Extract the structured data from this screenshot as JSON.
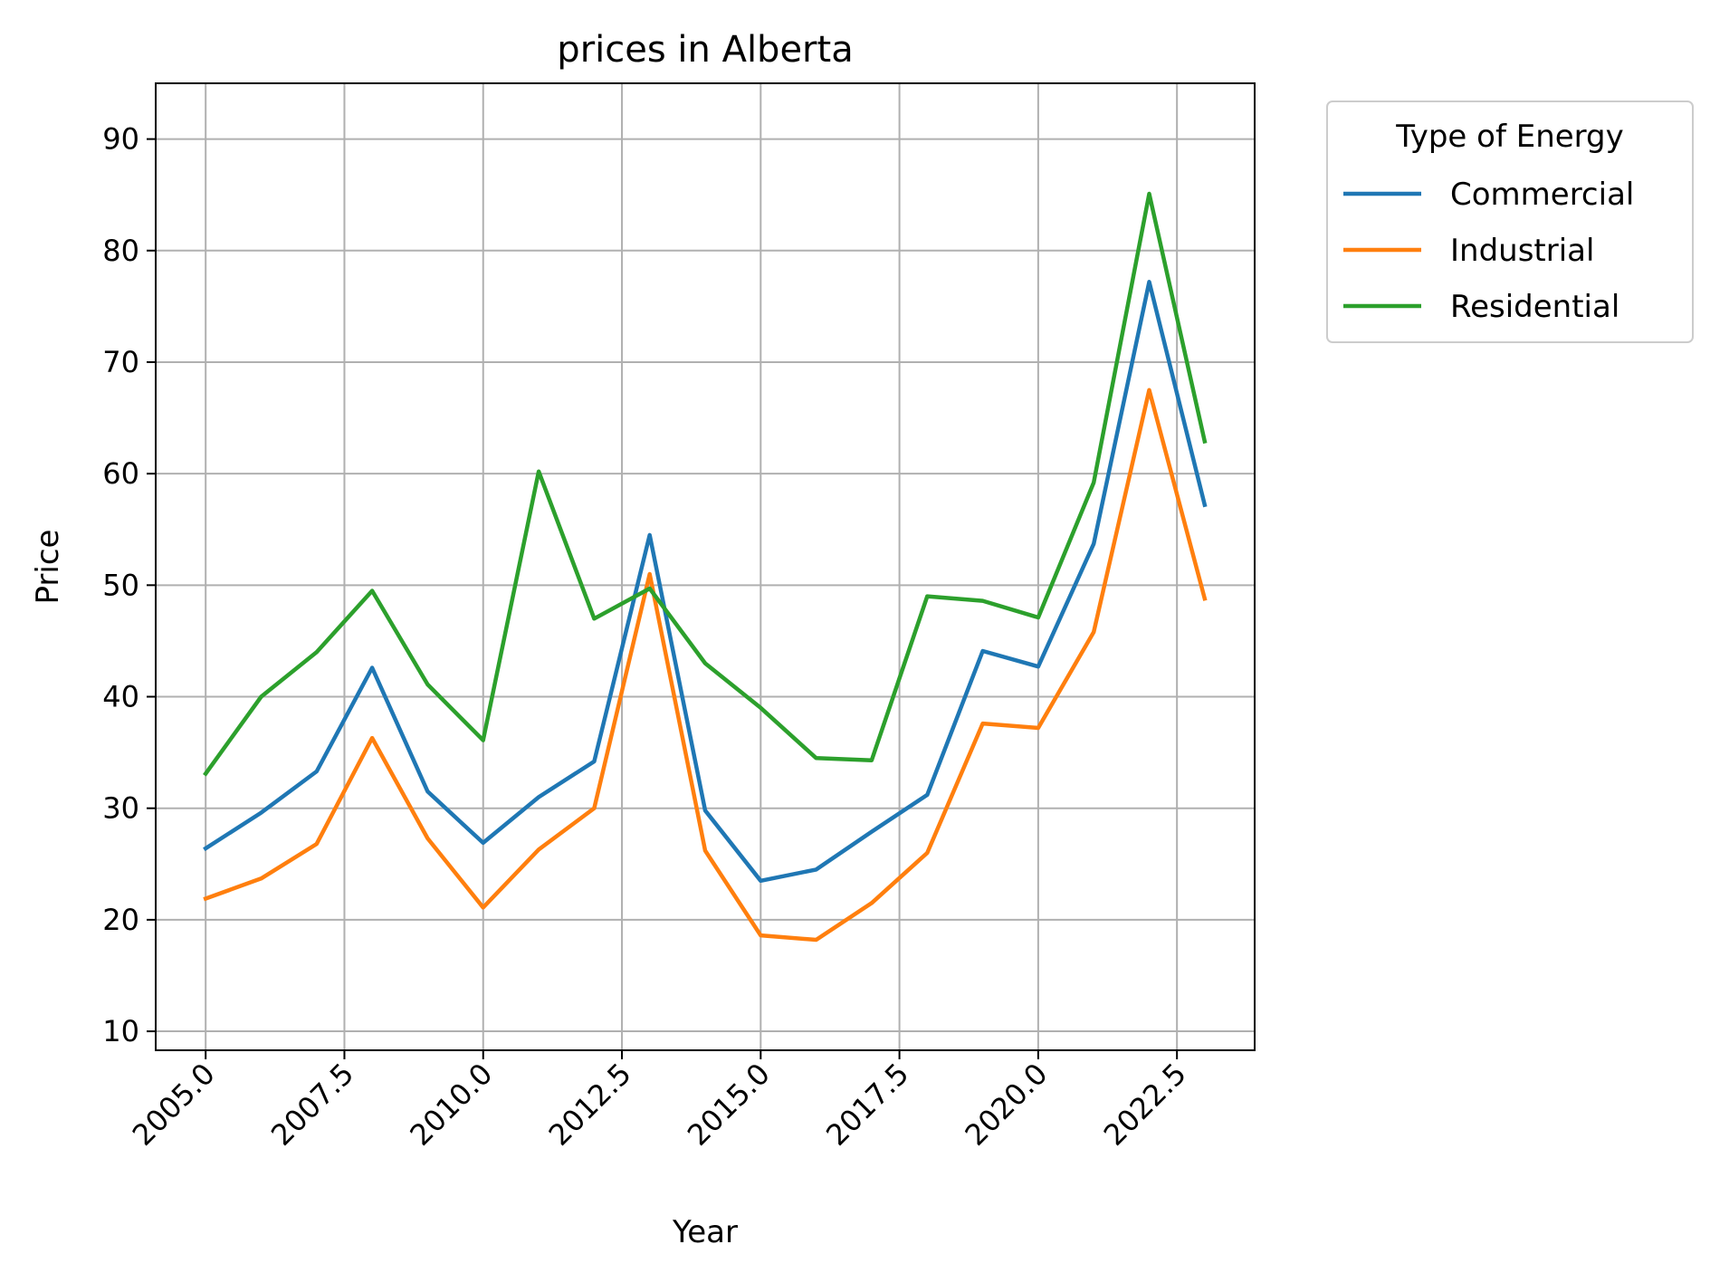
{
  "chart_data": {
    "type": "line",
    "title": "prices in Alberta",
    "xlabel": "Year",
    "ylabel": "Price",
    "xlim": [
      2004.1,
      2023.9
    ],
    "ylim": [
      8.3,
      95.0
    ],
    "xticks": [
      2005.0,
      2007.5,
      2010.0,
      2012.5,
      2015.0,
      2017.5,
      2020.0,
      2022.5
    ],
    "xtick_labels": [
      "2005.0",
      "2007.5",
      "2010.0",
      "2012.5",
      "2015.0",
      "2017.5",
      "2020.0",
      "2022.5"
    ],
    "yticks": [
      10,
      20,
      30,
      40,
      50,
      60,
      70,
      80,
      90
    ],
    "ytick_labels": [
      "10",
      "20",
      "30",
      "40",
      "50",
      "60",
      "70",
      "80",
      "90"
    ],
    "grid": true,
    "legend": {
      "title": "Type of Energy",
      "placement": "outside-right-top"
    },
    "x": [
      2005,
      2006,
      2007,
      2008,
      2009,
      2010,
      2011,
      2012,
      2013,
      2014,
      2015,
      2016,
      2017,
      2018,
      2019,
      2020,
      2021,
      2022,
      2023
    ],
    "series": [
      {
        "name": "Commercial",
        "color": "#1f77b4",
        "values": [
          26.4,
          29.6,
          33.3,
          42.6,
          31.5,
          26.9,
          31.0,
          34.2,
          54.5,
          29.8,
          23.5,
          24.5,
          27.9,
          31.2,
          44.1,
          42.7,
          53.7,
          77.2,
          57.2
        ]
      },
      {
        "name": "Industrial",
        "color": "#ff7f0e",
        "values": [
          21.9,
          23.7,
          26.8,
          36.3,
          27.3,
          21.1,
          26.3,
          30.0,
          51.0,
          26.2,
          18.6,
          18.2,
          21.5,
          26.0,
          37.6,
          37.2,
          45.8,
          67.5,
          48.8
        ]
      },
      {
        "name": "Residential",
        "color": "#2ca02c",
        "values": [
          33.1,
          40.0,
          44.0,
          49.5,
          41.1,
          36.1,
          60.2,
          47.0,
          49.7,
          43.0,
          39.0,
          34.5,
          34.3,
          49.0,
          48.6,
          47.1,
          59.2,
          85.1,
          62.9
        ]
      }
    ]
  }
}
